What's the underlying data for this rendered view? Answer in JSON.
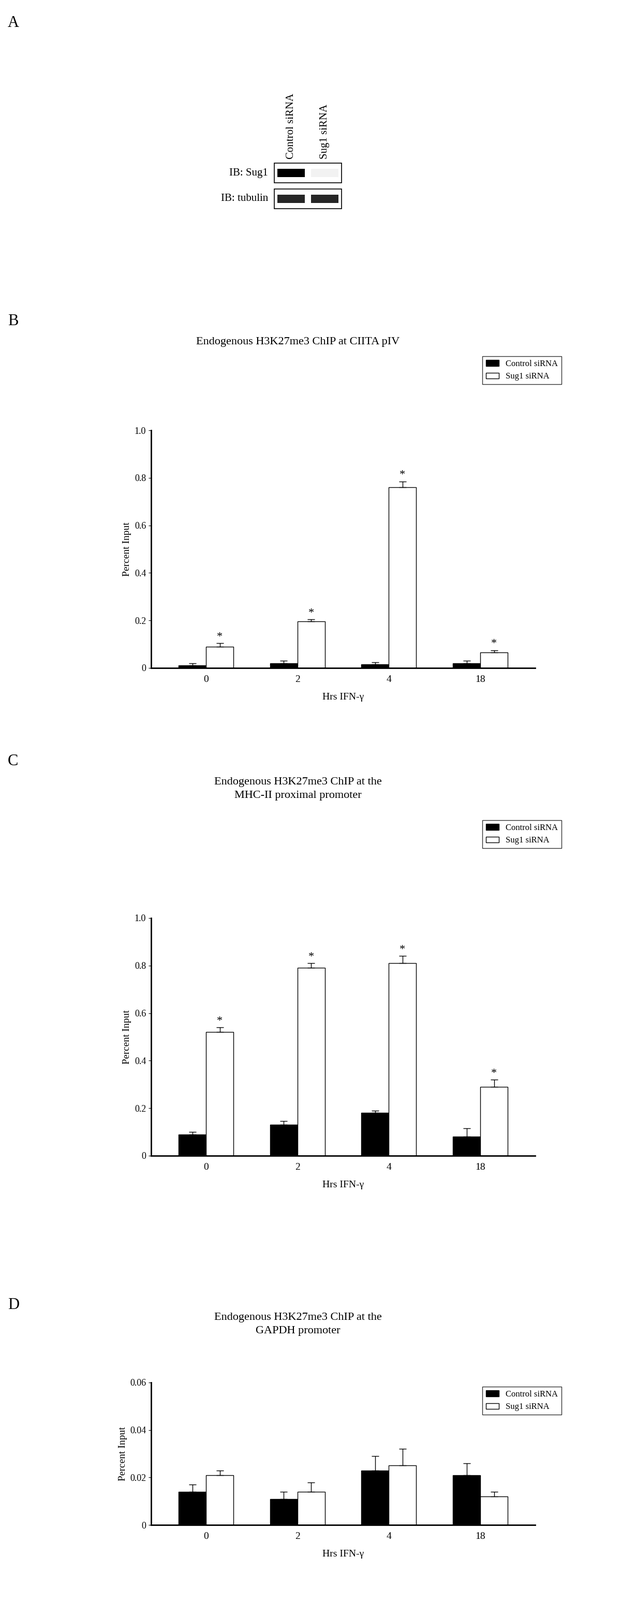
{
  "blot": {
    "panel": "A",
    "lanes": [
      "Control siRNA",
      "Sug1 siRNA"
    ],
    "rows": [
      {
        "label": "IB: Sug1",
        "intensity": [
          1.0,
          0.05
        ]
      },
      {
        "label": "IB: tubulin",
        "intensity": [
          0.85,
          0.85
        ]
      }
    ]
  },
  "chart_data": [
    {
      "type": "bar",
      "panel": "B",
      "title": "Endogenous H3K27me3 ChIP at CIITA pIV",
      "x_label": "Hrs IFN-γ",
      "y_label": "Percent Input",
      "categories": [
        "0",
        "2",
        "4",
        "18"
      ],
      "series": [
        {
          "name": "Control siRNA",
          "color": "#000000",
          "values": [
            0.01,
            0.02,
            0.015,
            0.02
          ],
          "errors": [
            0.01,
            0.01,
            0.01,
            0.01
          ]
        },
        {
          "name": "Sug1 siRNA",
          "color": "#ffffff",
          "values": [
            0.09,
            0.195,
            0.76,
            0.065
          ],
          "errors": [
            0.015,
            0.01,
            0.025,
            0.01
          ],
          "annotations": [
            "*",
            "*",
            "*",
            "*"
          ]
        }
      ],
      "ylim": [
        0,
        1.0
      ],
      "yticks": [
        0,
        0.2,
        0.4,
        0.6,
        0.8,
        {
          "value": 1.0,
          "label": "1.0"
        }
      ],
      "legend": "upper right"
    },
    {
      "type": "bar",
      "panel": "C",
      "title": "Endogenous H3K27me3 ChIP at the\nMHC-II proximal promoter",
      "x_label": "Hrs IFN-γ",
      "y_label": "Percent Input",
      "categories": [
        "0",
        "2",
        "4",
        "18"
      ],
      "series": [
        {
          "name": "Control siRNA",
          "color": "#000000",
          "values": [
            0.09,
            0.13,
            0.18,
            0.08
          ],
          "errors": [
            0.01,
            0.015,
            0.01,
            0.035
          ]
        },
        {
          "name": "Sug1 siRNA",
          "color": "#ffffff",
          "values": [
            0.52,
            0.79,
            0.81,
            0.29
          ],
          "errors": [
            0.02,
            0.02,
            0.03,
            0.03
          ],
          "annotations": [
            "*",
            "*",
            "*",
            "*"
          ]
        }
      ],
      "ylim": [
        0,
        1.0
      ],
      "yticks": [
        0,
        0.2,
        0.4,
        0.6,
        0.8,
        {
          "value": 1.0,
          "label": "1.0"
        }
      ],
      "legend": "upper right"
    },
    {
      "type": "bar",
      "panel": "D",
      "title": "Endogenous H3K27me3 ChIP at the\nGAPDH promoter",
      "x_label": "Hrs IFN-γ",
      "y_label": "Percent Input",
      "categories": [
        "0",
        "2",
        "4",
        "18"
      ],
      "series": [
        {
          "name": "Control siRNA",
          "color": "#000000",
          "values": [
            0.014,
            0.011,
            0.023,
            0.021
          ],
          "errors": [
            0.003,
            0.003,
            0.006,
            0.005
          ]
        },
        {
          "name": "Sug1 siRNA",
          "color": "#ffffff",
          "values": [
            0.021,
            0.014,
            0.025,
            0.012
          ],
          "errors": [
            0.002,
            0.004,
            0.007,
            0.002
          ]
        }
      ],
      "ylim": [
        0,
        0.06
      ],
      "yticks": [
        0,
        0.02,
        0.04,
        0.06
      ],
      "legend": "upper right"
    }
  ]
}
